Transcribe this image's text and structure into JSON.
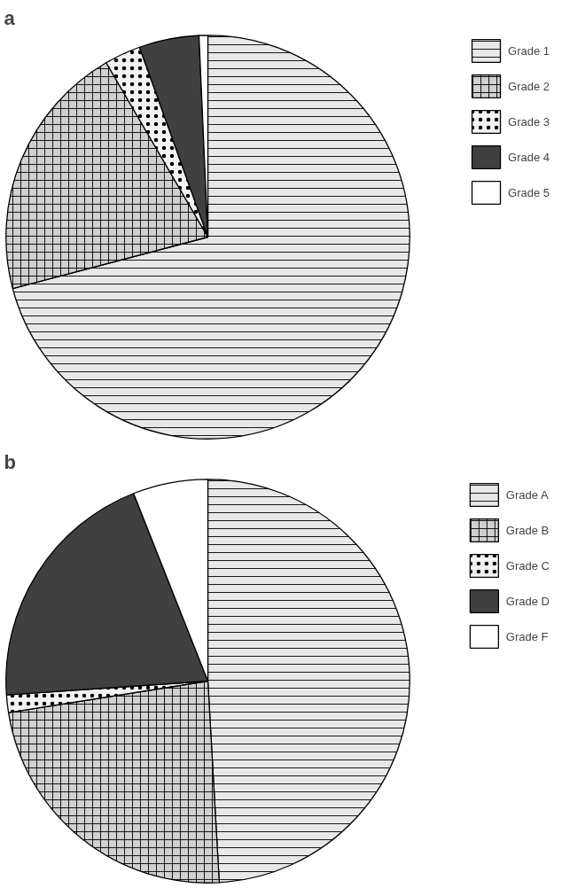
{
  "chart_data": [
    {
      "type": "pie",
      "title": "a",
      "categories": [
        "Grade 1",
        "Grade 2",
        "Grade 3",
        "Grade 4",
        "Grade 5"
      ],
      "values": [
        70.9,
        20.7,
        2.9,
        4.8,
        0.7
      ],
      "colors": [
        "#e8e8e8",
        "#d0d0d0",
        "#f2f2f2",
        "#404040",
        "#ffffff"
      ],
      "legend": "top right"
    },
    {
      "type": "pie",
      "title": "b",
      "categories": [
        "Grade A",
        "Grade B",
        "Grade C",
        "Grade D",
        "Grade F"
      ],
      "values": [
        49.1,
        23.4,
        1.4,
        20.1,
        6.0
      ],
      "colors": [
        "#e8e8e8",
        "#d0d0d0",
        "#f2f2f2",
        "#404040",
        "#ffffff"
      ],
      "legend": "top right"
    }
  ]
}
